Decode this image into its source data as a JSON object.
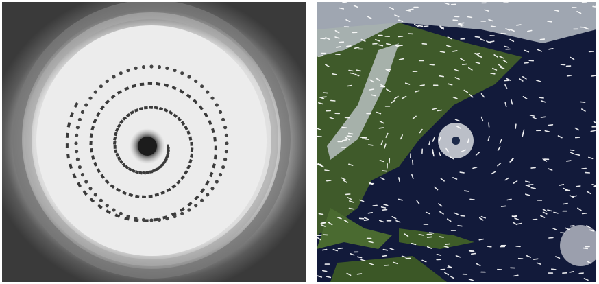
{
  "figure": {
    "left_panel": {
      "subject": "spiral-vortex-photo",
      "colors": {
        "background": "#4a4a4a",
        "center": "#f4f4f4",
        "core": "#1a1a1a",
        "marks": "#3a3a3a"
      }
    },
    "right_panel": {
      "subject": "satellite-hurricane-wind-map",
      "colors": {
        "ocean": "#121a3a",
        "land": "#3f5a2a",
        "cloud": "#d8dce0",
        "wind_arrows": "#ffffff"
      }
    }
  }
}
